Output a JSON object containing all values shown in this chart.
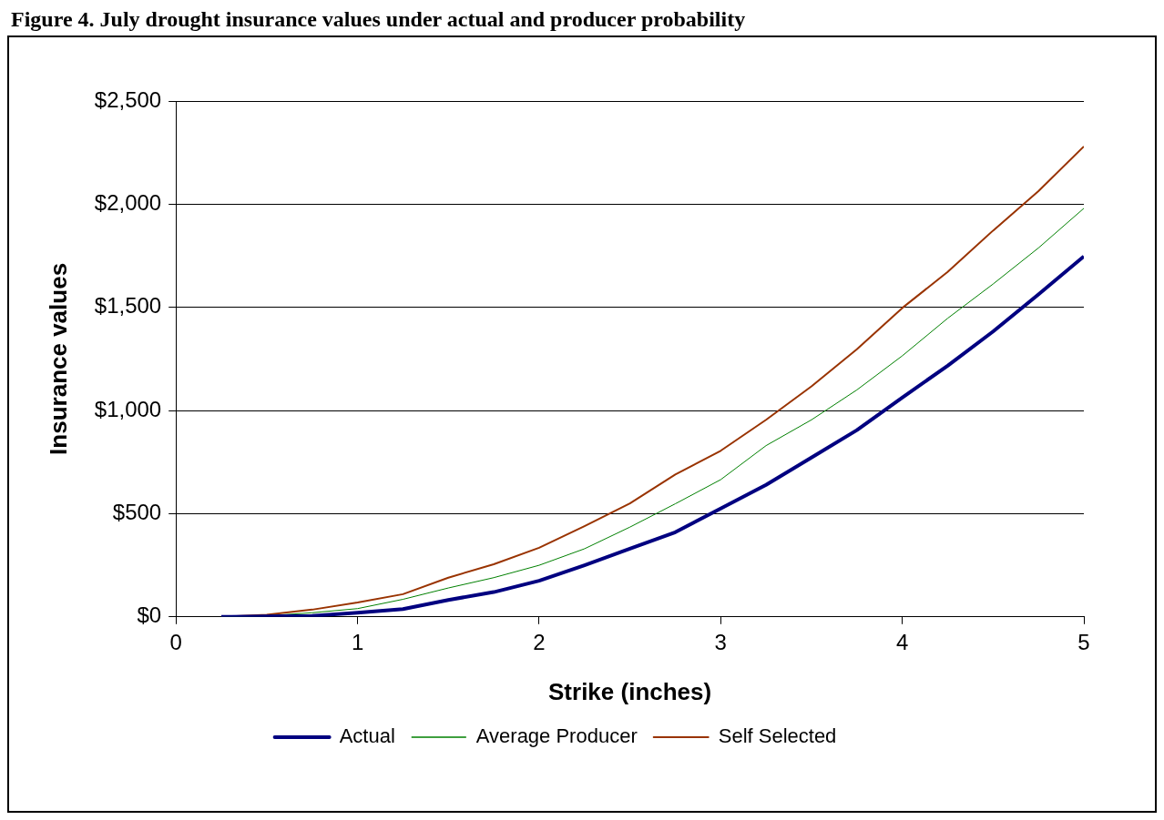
{
  "chart_data": {
    "type": "line",
    "title": "Figure 4.  July drought insurance values under actual and producer probability",
    "xlabel": "Strike (inches)",
    "ylabel": "Insurance values",
    "x": [
      0.25,
      0.5,
      0.75,
      1.0,
      1.25,
      1.5,
      1.75,
      2.0,
      2.25,
      2.5,
      2.75,
      3.0,
      3.25,
      3.5,
      3.75,
      4.0,
      4.25,
      4.5,
      4.75,
      5.0
    ],
    "series": [
      {
        "name": "Actual",
        "color": "#000080",
        "values": [
          0,
          2,
          5,
          20,
          38,
          82,
          120,
          175,
          250,
          330,
          410,
          525,
          640,
          772,
          905,
          1063,
          1217,
          1383,
          1563,
          1747
        ]
      },
      {
        "name": "Average Producer",
        "color": "#008000",
        "values": [
          0,
          5,
          20,
          40,
          85,
          140,
          190,
          250,
          330,
          435,
          548,
          665,
          830,
          955,
          1100,
          1265,
          1447,
          1613,
          1788,
          1980
        ]
      },
      {
        "name": "Self Selected",
        "color": "#993300",
        "values": [
          0,
          10,
          35,
          70,
          110,
          190,
          255,
          335,
          440,
          550,
          690,
          805,
          955,
          1117,
          1297,
          1497,
          1672,
          1872,
          2063,
          2280
        ]
      }
    ],
    "xlim": [
      0,
      5
    ],
    "xticks": [
      0,
      1,
      2,
      3,
      4,
      5
    ],
    "ylim": [
      0,
      2500
    ],
    "yticks": [
      {
        "value": 0,
        "label": "$0"
      },
      {
        "value": 500,
        "label": "$500"
      },
      {
        "value": 1000,
        "label": "$1,000"
      },
      {
        "value": 1500,
        "label": "$1,500"
      },
      {
        "value": 2000,
        "label": "$2,000"
      },
      {
        "value": 2500,
        "label": "$2,500"
      }
    ],
    "grid": "y",
    "legend": "bottom",
    "marker": "none",
    "line_style": "solid"
  }
}
